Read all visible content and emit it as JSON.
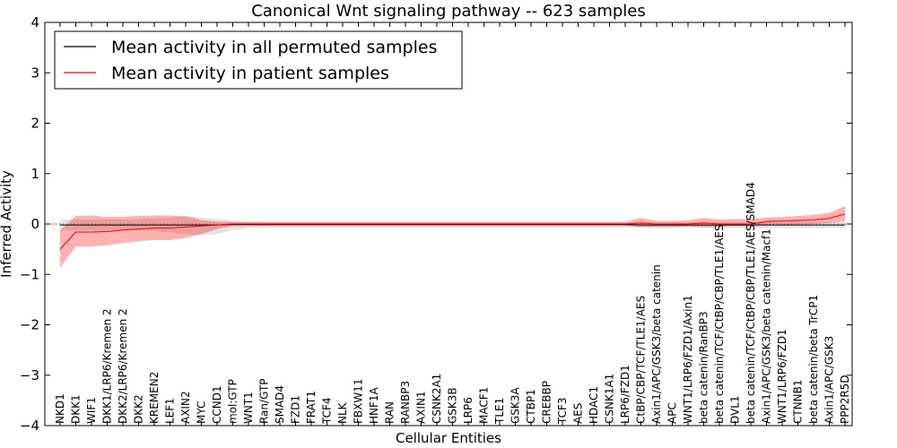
{
  "chart_data": {
    "type": "line",
    "title": "Canonical Wnt signaling pathway -- 623 samples",
    "xlabel": "Cellular Entities",
    "ylabel": "Inferred Activity",
    "ylim": [
      -4,
      4
    ],
    "yticks": [
      -4,
      -3,
      -2,
      -1,
      0,
      1,
      2,
      3,
      4
    ],
    "ytick_labels": [
      "−4",
      "−3",
      "−2",
      "−1",
      "0",
      "1",
      "2",
      "3",
      "4"
    ],
    "legend_position": "top-left",
    "categories": [
      "NKD1",
      "DKK1",
      "WIF1",
      "DKK1/LRP6/Kremen 2",
      "DKK2/LRP6/Kremen 2",
      "DKK2",
      "KREMEN2",
      "LEF1",
      "AXIN2",
      "MYC",
      "CCND1",
      "mol:GTP",
      "WNT1",
      "Ran/GTP",
      "SMAD4",
      "FZD1",
      "FRAT1",
      "TCF4",
      "NLK",
      "FBXW11",
      "HNF1A",
      "RAN",
      "RANBP3",
      "AXIN1",
      "CSNK2A1",
      "GSK3B",
      "LRP6",
      "MACF1",
      "TLE1",
      "GSK3A",
      "CTBP1",
      "CREBBP",
      "TCF3",
      "AES",
      "HDAC1",
      "CSNK1A1",
      "LRP6/FZD1",
      "CtBP/CBP/TCF/TLE1/AES",
      "Axin1/APC/GSK3/beta catenin",
      "APC",
      "WNT1/LRP6/FZD1/Axin1",
      "beta catenin/RanBP3",
      "beta catenin/TCF/CtBP/CBP/TLE1/AES",
      "DVL1",
      "beta catenin/TCF/CtBP/CBP/TLE1/AES/SMAD4",
      "Axin1/APC/GSK3/beta catenin/Macf1",
      "WNT1/LRP6/FZD1",
      "CTNNB1",
      "beta catenin/beta TrCP1",
      "Axin1/APC/GSK3",
      "PPP2R5D"
    ],
    "series": [
      {
        "name": "Mean activity in all permuted samples",
        "color": "#000000",
        "band_color": "#c8c8c8",
        "values": [
          -0.02,
          -0.02,
          -0.02,
          -0.02,
          -0.02,
          -0.02,
          -0.02,
          -0.02,
          -0.02,
          -0.02,
          -0.02,
          -0.01,
          -0.01,
          -0.01,
          -0.01,
          -0.01,
          -0.01,
          -0.01,
          -0.01,
          -0.01,
          -0.01,
          -0.01,
          -0.01,
          -0.01,
          -0.01,
          -0.01,
          -0.01,
          -0.01,
          -0.01,
          -0.01,
          -0.01,
          -0.01,
          -0.01,
          -0.01,
          -0.01,
          -0.01,
          -0.01,
          -0.02,
          -0.02,
          -0.02,
          -0.02,
          -0.02,
          -0.02,
          -0.02,
          -0.02,
          -0.02,
          -0.02,
          -0.02,
          -0.02,
          -0.02,
          -0.02
        ],
        "lower": [
          -0.12,
          -0.12,
          -0.12,
          -0.12,
          -0.12,
          -0.13,
          -0.14,
          -0.17,
          -0.2,
          -0.22,
          -0.2,
          -0.12,
          -0.08,
          -0.07,
          -0.06,
          -0.06,
          -0.06,
          -0.06,
          -0.06,
          -0.06,
          -0.06,
          -0.06,
          -0.06,
          -0.06,
          -0.06,
          -0.06,
          -0.06,
          -0.06,
          -0.06,
          -0.06,
          -0.06,
          -0.06,
          -0.06,
          -0.06,
          -0.06,
          -0.06,
          -0.06,
          -0.07,
          -0.07,
          -0.07,
          -0.07,
          -0.08,
          -0.08,
          -0.08,
          -0.08,
          -0.08,
          -0.08,
          -0.08,
          -0.08,
          -0.08,
          -0.08
        ],
        "upper": [
          0.09,
          0.09,
          0.09,
          0.09,
          0.09,
          0.1,
          0.11,
          0.13,
          0.16,
          0.13,
          0.1,
          0.07,
          0.05,
          0.04,
          0.04,
          0.04,
          0.04,
          0.04,
          0.04,
          0.04,
          0.04,
          0.04,
          0.04,
          0.04,
          0.04,
          0.04,
          0.04,
          0.04,
          0.04,
          0.04,
          0.04,
          0.04,
          0.04,
          0.04,
          0.04,
          0.04,
          0.04,
          0.04,
          0.04,
          0.04,
          0.04,
          0.04,
          0.04,
          0.04,
          0.04,
          0.04,
          0.04,
          0.04,
          0.04,
          0.04,
          0.04
        ]
      },
      {
        "name": "Mean activity in patient samples",
        "color": "#ff0000",
        "band_color": "#ff0000",
        "values": [
          -0.5,
          -0.16,
          -0.16,
          -0.15,
          -0.12,
          -0.1,
          -0.08,
          -0.08,
          -0.06,
          -0.04,
          -0.02,
          0,
          0,
          0,
          0,
          0,
          0,
          0,
          0,
          0,
          0,
          0,
          0,
          0,
          0,
          0,
          0,
          0,
          0,
          0,
          0,
          0,
          0,
          0,
          0,
          0,
          0,
          0.02,
          0,
          0,
          0,
          0.02,
          0,
          0,
          0,
          0.05,
          0.06,
          0.07,
          0.08,
          0.11,
          0.2
        ],
        "lower": [
          -0.87,
          -0.45,
          -0.45,
          -0.42,
          -0.38,
          -0.34,
          -0.32,
          -0.32,
          -0.28,
          -0.2,
          -0.1,
          -0.04,
          -0.04,
          -0.04,
          -0.04,
          -0.04,
          -0.04,
          -0.04,
          -0.04,
          -0.04,
          -0.04,
          -0.04,
          -0.04,
          -0.04,
          -0.04,
          -0.04,
          -0.04,
          -0.04,
          -0.04,
          -0.04,
          -0.04,
          -0.04,
          -0.04,
          -0.04,
          -0.04,
          -0.04,
          -0.04,
          -0.06,
          -0.06,
          -0.06,
          -0.05,
          -0.06,
          -0.05,
          -0.04,
          -0.03,
          -0.02,
          -0.01,
          -0.01,
          0.0,
          0.02,
          0.05
        ],
        "upper": [
          -0.13,
          0.16,
          0.17,
          0.14,
          0.14,
          0.16,
          0.17,
          0.17,
          0.15,
          0.08,
          0.05,
          0.04,
          0.04,
          0.04,
          0.04,
          0.04,
          0.04,
          0.04,
          0.04,
          0.04,
          0.04,
          0.04,
          0.04,
          0.04,
          0.04,
          0.04,
          0.04,
          0.04,
          0.04,
          0.04,
          0.04,
          0.04,
          0.04,
          0.04,
          0.04,
          0.04,
          0.04,
          0.12,
          0.06,
          0.06,
          0.07,
          0.12,
          0.09,
          0.1,
          0.1,
          0.13,
          0.14,
          0.16,
          0.18,
          0.22,
          0.36
        ]
      }
    ]
  }
}
